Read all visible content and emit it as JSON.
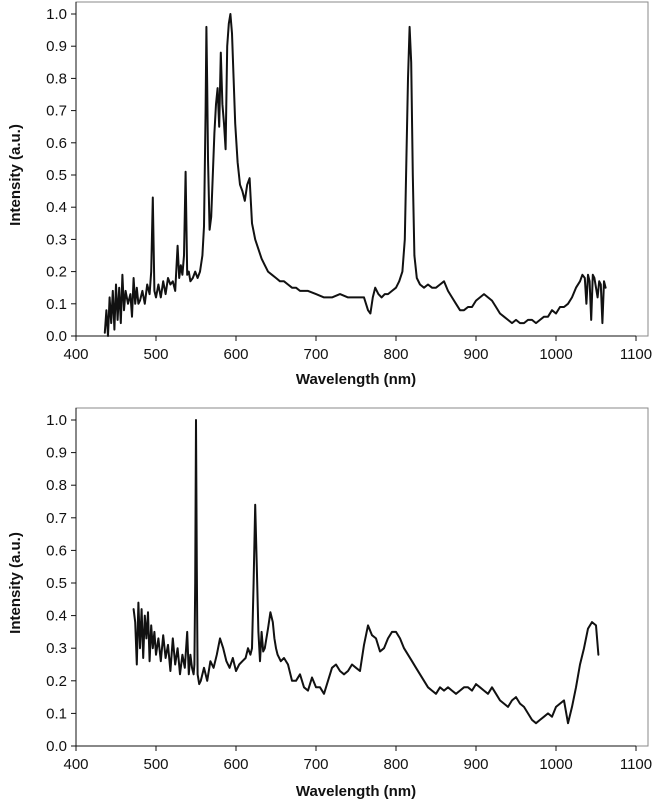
{
  "chart_data": [
    {
      "type": "line",
      "title": "",
      "xlabel": "Wavelength (nm)",
      "ylabel": "Intensity (a.u.)",
      "xlim": [
        400,
        1100
      ],
      "ylim": [
        0,
        1.0
      ],
      "xticks": [
        "400",
        "500",
        "600",
        "700",
        "800",
        "900",
        "1000",
        "1100"
      ],
      "yticks": [
        "0.0",
        "0.1",
        "0.2",
        "0.3",
        "0.4",
        "0.5",
        "0.6",
        "0.7",
        "0.8",
        "0.9",
        "1.0"
      ],
      "grid": false,
      "legend": "none",
      "series": [
        {
          "x": [
            436,
            438,
            440,
            442,
            444,
            446,
            448,
            450,
            452,
            454,
            456,
            458,
            460,
            462,
            465,
            468,
            470,
            472,
            474,
            476,
            478,
            480,
            483,
            486,
            489,
            492,
            494,
            496,
            498,
            500,
            503,
            506,
            509,
            512,
            515,
            518,
            521,
            524,
            527,
            529,
            531,
            533,
            535,
            537,
            539,
            541,
            543,
            546,
            549,
            552,
            555,
            558,
            560,
            562,
            563,
            564,
            565,
            567,
            569,
            571,
            573,
            575,
            577,
            579,
            581,
            583,
            585,
            587,
            589,
            591,
            593,
            595,
            597,
            599,
            602,
            605,
            608,
            611,
            614,
            617,
            620,
            624,
            628,
            632,
            636,
            640,
            645,
            650,
            655,
            660,
            665,
            670,
            675,
            680,
            690,
            700,
            710,
            720,
            730,
            740,
            750,
            760,
            765,
            768,
            771,
            774,
            778,
            782,
            786,
            790,
            795,
            800,
            804,
            808,
            811,
            813,
            815,
            817,
            819,
            821,
            823,
            826,
            830,
            835,
            840,
            845,
            850,
            855,
            860,
            865,
            870,
            875,
            880,
            885,
            890,
            895,
            900,
            905,
            910,
            915,
            920,
            925,
            930,
            935,
            940,
            945,
            950,
            955,
            960,
            965,
            970,
            975,
            980,
            985,
            990,
            995,
            1000,
            1005,
            1010,
            1015,
            1020,
            1025,
            1030,
            1033,
            1036,
            1038,
            1040,
            1042,
            1044,
            1046,
            1048,
            1050,
            1052,
            1054,
            1056,
            1058,
            1060,
            1062
          ],
          "y": [
            0.01,
            0.08,
            0.0,
            0.12,
            0.04,
            0.14,
            0.02,
            0.16,
            0.05,
            0.15,
            0.04,
            0.19,
            0.08,
            0.14,
            0.1,
            0.13,
            0.06,
            0.18,
            0.1,
            0.15,
            0.1,
            0.11,
            0.14,
            0.1,
            0.16,
            0.13,
            0.2,
            0.43,
            0.14,
            0.12,
            0.16,
            0.12,
            0.17,
            0.13,
            0.18,
            0.16,
            0.17,
            0.14,
            0.28,
            0.18,
            0.22,
            0.19,
            0.25,
            0.51,
            0.19,
            0.2,
            0.17,
            0.18,
            0.2,
            0.18,
            0.2,
            0.25,
            0.34,
            0.7,
            0.96,
            0.78,
            0.55,
            0.33,
            0.37,
            0.5,
            0.63,
            0.72,
            0.77,
            0.65,
            0.88,
            0.72,
            0.66,
            0.58,
            0.9,
            0.97,
            1.0,
            0.94,
            0.8,
            0.66,
            0.54,
            0.47,
            0.45,
            0.42,
            0.47,
            0.49,
            0.35,
            0.3,
            0.27,
            0.24,
            0.22,
            0.2,
            0.19,
            0.18,
            0.17,
            0.17,
            0.16,
            0.15,
            0.15,
            0.14,
            0.14,
            0.13,
            0.12,
            0.12,
            0.13,
            0.12,
            0.12,
            0.12,
            0.08,
            0.07,
            0.12,
            0.15,
            0.13,
            0.12,
            0.13,
            0.13,
            0.14,
            0.15,
            0.17,
            0.2,
            0.3,
            0.55,
            0.8,
            0.96,
            0.85,
            0.5,
            0.25,
            0.18,
            0.16,
            0.15,
            0.16,
            0.15,
            0.15,
            0.16,
            0.17,
            0.14,
            0.12,
            0.1,
            0.08,
            0.08,
            0.09,
            0.09,
            0.11,
            0.12,
            0.13,
            0.12,
            0.11,
            0.09,
            0.07,
            0.06,
            0.05,
            0.04,
            0.05,
            0.04,
            0.04,
            0.05,
            0.05,
            0.04,
            0.05,
            0.06,
            0.06,
            0.08,
            0.07,
            0.09,
            0.09,
            0.1,
            0.12,
            0.15,
            0.17,
            0.19,
            0.18,
            0.1,
            0.19,
            0.17,
            0.05,
            0.19,
            0.18,
            0.15,
            0.12,
            0.17,
            0.16,
            0.04,
            0.17,
            0.15
          ]
        }
      ]
    },
    {
      "type": "line",
      "title": "",
      "xlabel": "Wavelength (nm)",
      "ylabel": "Intensity (a.u.)",
      "xlim": [
        400,
        1100
      ],
      "ylim": [
        0,
        1.0
      ],
      "xticks": [
        "400",
        "500",
        "600",
        "700",
        "800",
        "900",
        "1000",
        "1100"
      ],
      "yticks": [
        "0.0",
        "0.1",
        "0.2",
        "0.3",
        "0.4",
        "0.5",
        "0.6",
        "0.7",
        "0.8",
        "0.9",
        "1.0"
      ],
      "grid": false,
      "legend": "none",
      "series": [
        {
          "x": [
            472,
            474,
            476,
            478,
            480,
            482,
            484,
            486,
            488,
            490,
            492,
            494,
            496,
            498,
            500,
            503,
            506,
            509,
            512,
            515,
            518,
            521,
            524,
            527,
            530,
            533,
            536,
            539,
            541,
            543,
            545,
            547,
            548,
            549,
            550,
            551,
            552,
            554,
            556,
            560,
            564,
            568,
            572,
            576,
            580,
            584,
            588,
            592,
            596,
            600,
            604,
            608,
            612,
            615,
            618,
            620,
            622,
            624,
            626,
            628,
            630,
            632,
            634,
            636,
            638,
            640,
            643,
            646,
            648,
            650,
            652,
            656,
            660,
            665,
            670,
            675,
            680,
            685,
            690,
            695,
            700,
            705,
            710,
            715,
            720,
            725,
            730,
            735,
            740,
            745,
            750,
            755,
            760,
            765,
            770,
            775,
            780,
            785,
            790,
            795,
            800,
            805,
            810,
            815,
            820,
            825,
            830,
            835,
            840,
            845,
            850,
            855,
            860,
            865,
            870,
            875,
            880,
            885,
            890,
            895,
            900,
            905,
            910,
            915,
            920,
            925,
            930,
            935,
            940,
            945,
            950,
            955,
            960,
            965,
            970,
            975,
            980,
            985,
            990,
            995,
            1000,
            1005,
            1010,
            1015,
            1020,
            1025,
            1030,
            1035,
            1040,
            1045,
            1050,
            1053
          ],
          "y": [
            0.42,
            0.38,
            0.25,
            0.44,
            0.3,
            0.42,
            0.27,
            0.4,
            0.33,
            0.41,
            0.26,
            0.37,
            0.3,
            0.35,
            0.28,
            0.33,
            0.26,
            0.34,
            0.27,
            0.31,
            0.23,
            0.33,
            0.25,
            0.3,
            0.22,
            0.28,
            0.24,
            0.35,
            0.22,
            0.28,
            0.24,
            0.22,
            0.25,
            0.5,
            1.0,
            0.55,
            0.22,
            0.19,
            0.2,
            0.24,
            0.2,
            0.26,
            0.24,
            0.28,
            0.33,
            0.3,
            0.26,
            0.24,
            0.27,
            0.23,
            0.25,
            0.26,
            0.27,
            0.3,
            0.28,
            0.3,
            0.5,
            0.74,
            0.55,
            0.35,
            0.26,
            0.35,
            0.29,
            0.3,
            0.33,
            0.36,
            0.41,
            0.38,
            0.33,
            0.3,
            0.28,
            0.26,
            0.27,
            0.25,
            0.2,
            0.2,
            0.22,
            0.18,
            0.17,
            0.21,
            0.18,
            0.18,
            0.16,
            0.2,
            0.24,
            0.25,
            0.23,
            0.22,
            0.23,
            0.25,
            0.24,
            0.23,
            0.31,
            0.37,
            0.34,
            0.33,
            0.29,
            0.3,
            0.33,
            0.35,
            0.35,
            0.33,
            0.3,
            0.28,
            0.26,
            0.24,
            0.22,
            0.2,
            0.18,
            0.17,
            0.16,
            0.18,
            0.17,
            0.18,
            0.17,
            0.16,
            0.17,
            0.18,
            0.18,
            0.17,
            0.19,
            0.18,
            0.17,
            0.16,
            0.18,
            0.16,
            0.14,
            0.13,
            0.12,
            0.14,
            0.15,
            0.13,
            0.12,
            0.1,
            0.08,
            0.07,
            0.08,
            0.09,
            0.1,
            0.09,
            0.12,
            0.13,
            0.14,
            0.07,
            0.12,
            0.18,
            0.25,
            0.3,
            0.36,
            0.38,
            0.37,
            0.28
          ]
        }
      ]
    }
  ]
}
